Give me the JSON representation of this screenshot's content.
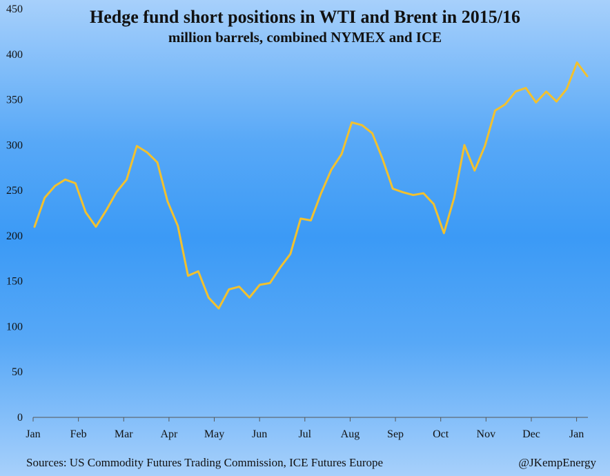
{
  "chart_data": {
    "type": "line",
    "title": "Hedge fund short positions in WTI and Brent in 2015/16",
    "subtitle": "million barrels, combined NYMEX and ICE",
    "xlabel": "",
    "ylabel": "",
    "ylim": [
      0,
      450
    ],
    "yticks": [
      0,
      50,
      100,
      150,
      200,
      250,
      300,
      350,
      400,
      450
    ],
    "x_tick_labels": [
      "Jan",
      "Feb",
      "Mar",
      "Apr",
      "May",
      "Jun",
      "Jul",
      "Aug",
      "Sep",
      "Oct",
      "Nov",
      "Dec",
      "Jan"
    ],
    "grid": false,
    "legend": "none",
    "line_color": "#f2c12e",
    "series": [
      {
        "name": "",
        "values": [
          210,
          242,
          255,
          262,
          258,
          226,
          210,
          228,
          248,
          262,
          299,
          292,
          281,
          238,
          211,
          156,
          161,
          132,
          120,
          141,
          144,
          132,
          146,
          148,
          165,
          180,
          219,
          217,
          247,
          273,
          290,
          325,
          322,
          313,
          285,
          252,
          248,
          245,
          247,
          235,
          203,
          242,
          300,
          272,
          299,
          338,
          345,
          359,
          363,
          347,
          359,
          348,
          362,
          391,
          376
        ]
      }
    ]
  },
  "footer": {
    "source": "Sources: US Commodity Futures Trading Commission, ICE Futures Europe",
    "credit": "@JKempEnergy"
  }
}
